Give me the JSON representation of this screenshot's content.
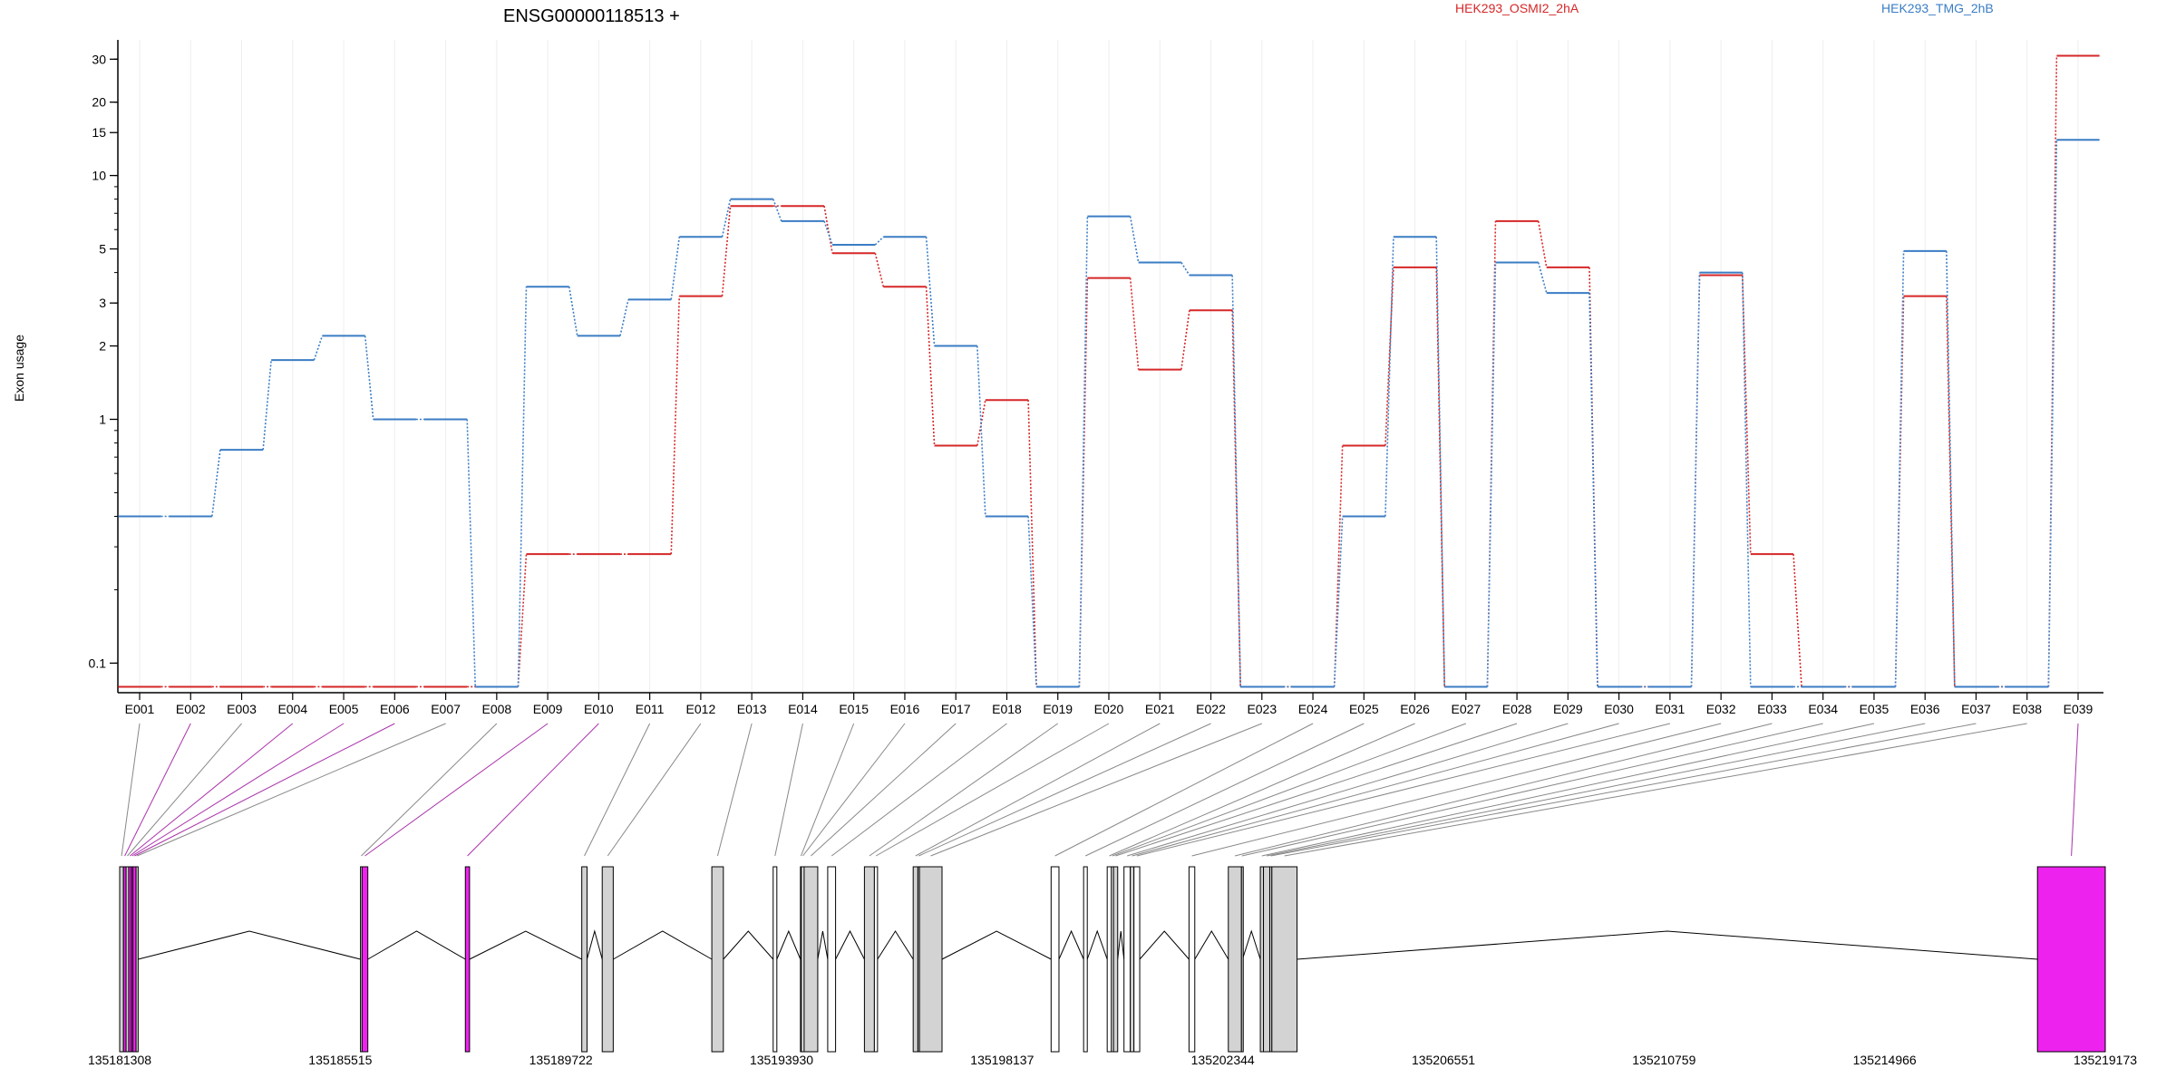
{
  "title": "ENSG00000118513 +",
  "legend": [
    {
      "name": "HEK293_OSMI2_2hA",
      "color": "#d62728"
    },
    {
      "name": "HEK293_TMG_2hB",
      "color": "#3b7dc4"
    }
  ],
  "ylabel": "Exon usage",
  "colors": {
    "treated": "#d62728",
    "control": "#3b7dc4",
    "significant_exon": "#ee22ee",
    "exon": "#d3d3d3",
    "axis": "#000000"
  },
  "chart_data": {
    "type": "line",
    "title": "ENSG00000118513 +",
    "xlabel": "",
    "ylabel": "Exon usage",
    "y_scale": "log",
    "ylim": [
      0.075,
      36
    ],
    "yticks": [
      0.1,
      1,
      2,
      3,
      5,
      10,
      15,
      20,
      30
    ],
    "ytick_labels": [
      "0.1",
      "1",
      "2",
      "3",
      "5",
      "10",
      "15",
      "20",
      "30"
    ],
    "categories": [
      "E001",
      "E002",
      "E003",
      "E004",
      "E005",
      "E006",
      "E007",
      "E008",
      "E009",
      "E010",
      "E011",
      "E012",
      "E013",
      "E014",
      "E015",
      "E016",
      "E017",
      "E018",
      "E019",
      "E020",
      "E021",
      "E022",
      "E023",
      "E024",
      "E025",
      "E026",
      "E027",
      "E028",
      "E029",
      "E030",
      "E031",
      "E032",
      "E033",
      "E034",
      "E035",
      "E036",
      "E037",
      "E038",
      "E039"
    ],
    "series": [
      {
        "name": "HEK293_OSMI2_2hA",
        "color": "#d62728",
        "values": [
          0.08,
          0.08,
          0.08,
          0.08,
          0.08,
          0.08,
          0.08,
          0.08,
          0.28,
          0.28,
          0.28,
          3.2,
          7.5,
          7.5,
          4.8,
          3.5,
          0.78,
          1.2,
          0.08,
          3.8,
          1.6,
          2.8,
          0.08,
          0.08,
          0.78,
          4.2,
          0.08,
          6.5,
          4.2,
          0.08,
          0.08,
          3.9,
          0.28,
          0.08,
          0.08,
          3.2,
          0.08,
          0.08,
          31
        ]
      },
      {
        "name": "HEK293_TMG_2hB",
        "color": "#3b7dc4",
        "values": [
          0.4,
          0.4,
          0.75,
          1.75,
          2.2,
          1.0,
          1.0,
          0.08,
          3.5,
          2.2,
          3.1,
          5.6,
          8.0,
          6.5,
          5.2,
          5.6,
          2.0,
          0.4,
          0.08,
          6.8,
          4.4,
          3.9,
          0.08,
          0.08,
          0.4,
          5.6,
          0.08,
          4.4,
          3.3,
          0.08,
          0.08,
          4.0,
          0.08,
          0.08,
          0.08,
          4.9,
          0.08,
          0.08,
          14
        ]
      }
    ],
    "genomic_axis": {
      "start": 135181308,
      "end": 135219173,
      "tick_labels": [
        "135181308",
        "135185515",
        "135189722",
        "135193930",
        "135198137",
        "135202344",
        "135206551",
        "135210759",
        "135214966",
        "135219173"
      ]
    },
    "exons": [
      {
        "id": "E001",
        "start": 135181308,
        "end": 135181380,
        "significant": false
      },
      {
        "id": "E002",
        "start": 135181380,
        "end": 135181430,
        "significant": true
      },
      {
        "id": "E003",
        "start": 135181430,
        "end": 135181480,
        "significant": false
      },
      {
        "id": "E004",
        "start": 135181480,
        "end": 135181530,
        "significant": true
      },
      {
        "id": "E005",
        "start": 135181530,
        "end": 135181560,
        "significant": true
      },
      {
        "id": "E006",
        "start": 135181560,
        "end": 135181620,
        "significant": true
      },
      {
        "id": "E007",
        "start": 135181620,
        "end": 135181660,
        "significant": false
      },
      {
        "id": "E008",
        "start": 135185900,
        "end": 135185930,
        "significant": false
      },
      {
        "id": "E009",
        "start": 135185930,
        "end": 135186040,
        "significant": true
      },
      {
        "id": "E010",
        "start": 135187900,
        "end": 135187980,
        "significant": true
      },
      {
        "id": "E011",
        "start": 135190120,
        "end": 135190220,
        "significant": false
      },
      {
        "id": "E012",
        "start": 135190510,
        "end": 135190720,
        "significant": false
      },
      {
        "id": "E013",
        "start": 135192600,
        "end": 135192820,
        "significant": false
      },
      {
        "id": "E014",
        "start": 135193770,
        "end": 135193840,
        "significant": false
      },
      {
        "id": "E015",
        "start": 135194290,
        "end": 135194310,
        "significant": false
      },
      {
        "id": "E016",
        "start": 135194310,
        "end": 135194360,
        "significant": false
      },
      {
        "id": "E017",
        "start": 135194360,
        "end": 135194620,
        "significant": false
      },
      {
        "id": "E018",
        "start": 135194810,
        "end": 135194960,
        "significant": false
      },
      {
        "id": "E019",
        "start": 135195510,
        "end": 135195700,
        "significant": false
      },
      {
        "id": "E020",
        "start": 135195700,
        "end": 135195760,
        "significant": false
      },
      {
        "id": "E021",
        "start": 135196440,
        "end": 135196530,
        "significant": false
      },
      {
        "id": "E022",
        "start": 135196530,
        "end": 135196560,
        "significant": false
      },
      {
        "id": "E023",
        "start": 135196560,
        "end": 135196990,
        "significant": false
      },
      {
        "id": "E024",
        "start": 135199070,
        "end": 135199220,
        "significant": false
      },
      {
        "id": "E025",
        "start": 135199690,
        "end": 135199760,
        "significant": false
      },
      {
        "id": "E026",
        "start": 135200140,
        "end": 135200220,
        "significant": false
      },
      {
        "id": "E027",
        "start": 135200220,
        "end": 135200260,
        "significant": false
      },
      {
        "id": "E028",
        "start": 135200260,
        "end": 135200340,
        "significant": false
      },
      {
        "id": "E029",
        "start": 135200460,
        "end": 135200580,
        "significant": false
      },
      {
        "id": "E030",
        "start": 135200580,
        "end": 135200650,
        "significant": false
      },
      {
        "id": "E031",
        "start": 135200650,
        "end": 135200760,
        "significant": false
      },
      {
        "id": "E032",
        "start": 135201700,
        "end": 135201810,
        "significant": false
      },
      {
        "id": "E033",
        "start": 135202450,
        "end": 135202700,
        "significant": false
      },
      {
        "id": "E034",
        "start": 135202700,
        "end": 135202720,
        "significant": false
      },
      {
        "id": "E035",
        "start": 135203060,
        "end": 135203120,
        "significant": false
      },
      {
        "id": "E036",
        "start": 135203120,
        "end": 135203240,
        "significant": false
      },
      {
        "id": "E037",
        "start": 135203240,
        "end": 135203280,
        "significant": false
      },
      {
        "id": "E038",
        "start": 135203280,
        "end": 135203760,
        "significant": false
      },
      {
        "id": "E039",
        "start": 135217880,
        "end": 135219173,
        "significant": true
      }
    ]
  }
}
